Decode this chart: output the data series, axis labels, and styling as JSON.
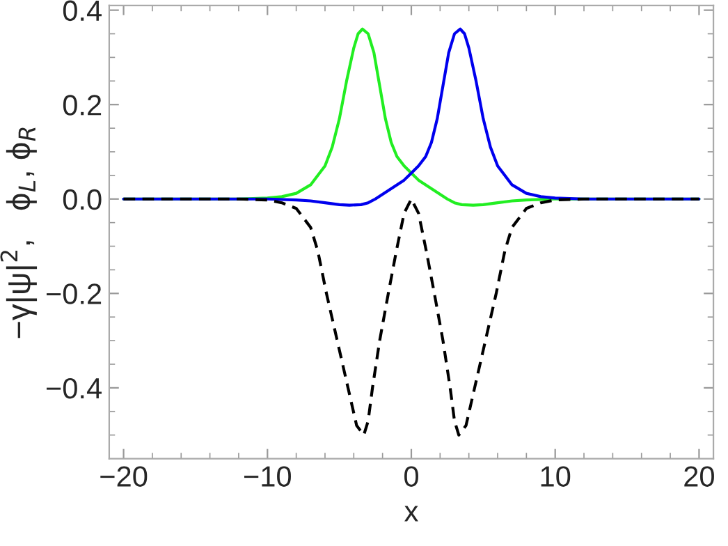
{
  "chart_data": {
    "type": "line",
    "xlabel": "x",
    "ylabel": "−γ|ψ|$^{2}$,   ϕ$_{L}$, ϕ$_{R}$",
    "xlim": [
      -21,
      21
    ],
    "ylim": [
      -0.55,
      0.41
    ],
    "xticks": [
      {
        "value": -20,
        "label": "−20"
      },
      {
        "value": -18,
        "label": null
      },
      {
        "value": -16,
        "label": null
      },
      {
        "value": -14,
        "label": null
      },
      {
        "value": -12,
        "label": null
      },
      {
        "value": -10,
        "label": "−10"
      },
      {
        "value": -8,
        "label": null
      },
      {
        "value": -6,
        "label": null
      },
      {
        "value": -4,
        "label": null
      },
      {
        "value": -2,
        "label": null
      },
      0,
      {
        "value": 2,
        "label": null
      },
      {
        "value": 4,
        "label": null
      },
      {
        "value": 6,
        "label": null
      },
      {
        "value": 8,
        "label": null
      },
      10,
      {
        "value": 12,
        "label": null
      },
      {
        "value": 14,
        "label": null
      },
      {
        "value": 16,
        "label": null
      },
      {
        "value": 18,
        "label": null
      },
      20
    ],
    "yticks": [
      {
        "value": -0.5,
        "label": null
      },
      {
        "value": -0.45,
        "label": null
      },
      {
        "value": -0.4,
        "label": "−0.4"
      },
      {
        "value": -0.35,
        "label": null
      },
      {
        "value": -0.3,
        "label": null
      },
      {
        "value": -0.25,
        "label": null
      },
      {
        "value": -0.2,
        "label": "−0.2"
      },
      {
        "value": -0.15,
        "label": null
      },
      {
        "value": -0.1,
        "label": null
      },
      {
        "value": -0.05,
        "label": null
      },
      {
        "value": 0,
        "label": "0.0"
      },
      {
        "value": 0.05,
        "label": null
      },
      {
        "value": 0.1,
        "label": null
      },
      {
        "value": 0.15,
        "label": null
      },
      {
        "value": 0.2,
        "label": "0.2"
      },
      {
        "value": 0.25,
        "label": null
      },
      {
        "value": 0.3,
        "label": null
      },
      {
        "value": 0.35,
        "label": null
      },
      {
        "value": 0.4,
        "label": "0.4"
      }
    ],
    "grid": false,
    "legend": false,
    "series": [
      {
        "color": "#22ee22",
        "line_style": "solid",
        "x": [
          -20,
          -12,
          -10,
          -9,
          -8,
          -7,
          -6,
          -5.5,
          -5,
          -4.5,
          -4,
          -3.7,
          -3.4,
          -3,
          -2.6,
          -2.2,
          -1.8,
          -1.4,
          -1,
          -0.5,
          0,
          0.5,
          1,
          1.5,
          2,
          2.5,
          3,
          3.5,
          4.3,
          5,
          6,
          7,
          8,
          10,
          20
        ],
        "values": [
          0,
          0,
          0.002,
          0.005,
          0.012,
          0.03,
          0.07,
          0.11,
          0.17,
          0.25,
          0.32,
          0.35,
          0.36,
          0.35,
          0.31,
          0.24,
          0.17,
          0.12,
          0.09,
          0.07,
          0.055,
          0.04,
          0.03,
          0.02,
          0.01,
          0.0,
          -0.008,
          -0.012,
          -0.013,
          -0.012,
          -0.008,
          -0.004,
          -0.002,
          0,
          0
        ]
      },
      {
        "color": "#0000ee",
        "line_style": "solid",
        "x": [
          -20,
          -10,
          -8,
          -7,
          -6,
          -5,
          -4.3,
          -3.5,
          -3,
          -2.5,
          -2,
          -1.5,
          -1,
          -0.5,
          0,
          0.5,
          1,
          1.4,
          1.8,
          2.2,
          2.6,
          3,
          3.4,
          3.7,
          4,
          4.5,
          5,
          5.5,
          6,
          7,
          8,
          9,
          10,
          12,
          20
        ],
        "values": [
          0,
          0,
          -0.002,
          -0.004,
          -0.008,
          -0.012,
          -0.013,
          -0.012,
          -0.008,
          0.0,
          0.01,
          0.02,
          0.03,
          0.04,
          0.055,
          0.07,
          0.09,
          0.12,
          0.17,
          0.24,
          0.31,
          0.35,
          0.36,
          0.35,
          0.32,
          0.25,
          0.17,
          0.11,
          0.07,
          0.03,
          0.012,
          0.005,
          0.002,
          0,
          0
        ]
      },
      {
        "color": "#000000",
        "line_style": "dashed",
        "x": [
          -20,
          -12,
          -10,
          -9,
          -8,
          -7,
          -6.5,
          -5.9,
          -5,
          -4.4,
          -3.8,
          -3.3,
          -3,
          -2.7,
          -2.2,
          -1.6,
          -1.04,
          -0.5,
          0,
          0.5,
          1.04,
          1.6,
          2.2,
          2.7,
          3,
          3.3,
          3.8,
          4.4,
          5,
          5.9,
          6.5,
          7,
          8,
          9,
          10,
          12,
          20
        ],
        "values": [
          0,
          0,
          -0.002,
          -0.008,
          -0.02,
          -0.06,
          -0.11,
          -0.2,
          -0.32,
          -0.4,
          -0.48,
          -0.5,
          -0.47,
          -0.4,
          -0.3,
          -0.2,
          -0.11,
          -0.03,
          0,
          -0.03,
          -0.11,
          -0.2,
          -0.3,
          -0.4,
          -0.47,
          -0.5,
          -0.48,
          -0.4,
          -0.32,
          -0.2,
          -0.11,
          -0.06,
          -0.02,
          -0.008,
          -0.002,
          0,
          0
        ]
      }
    ]
  }
}
